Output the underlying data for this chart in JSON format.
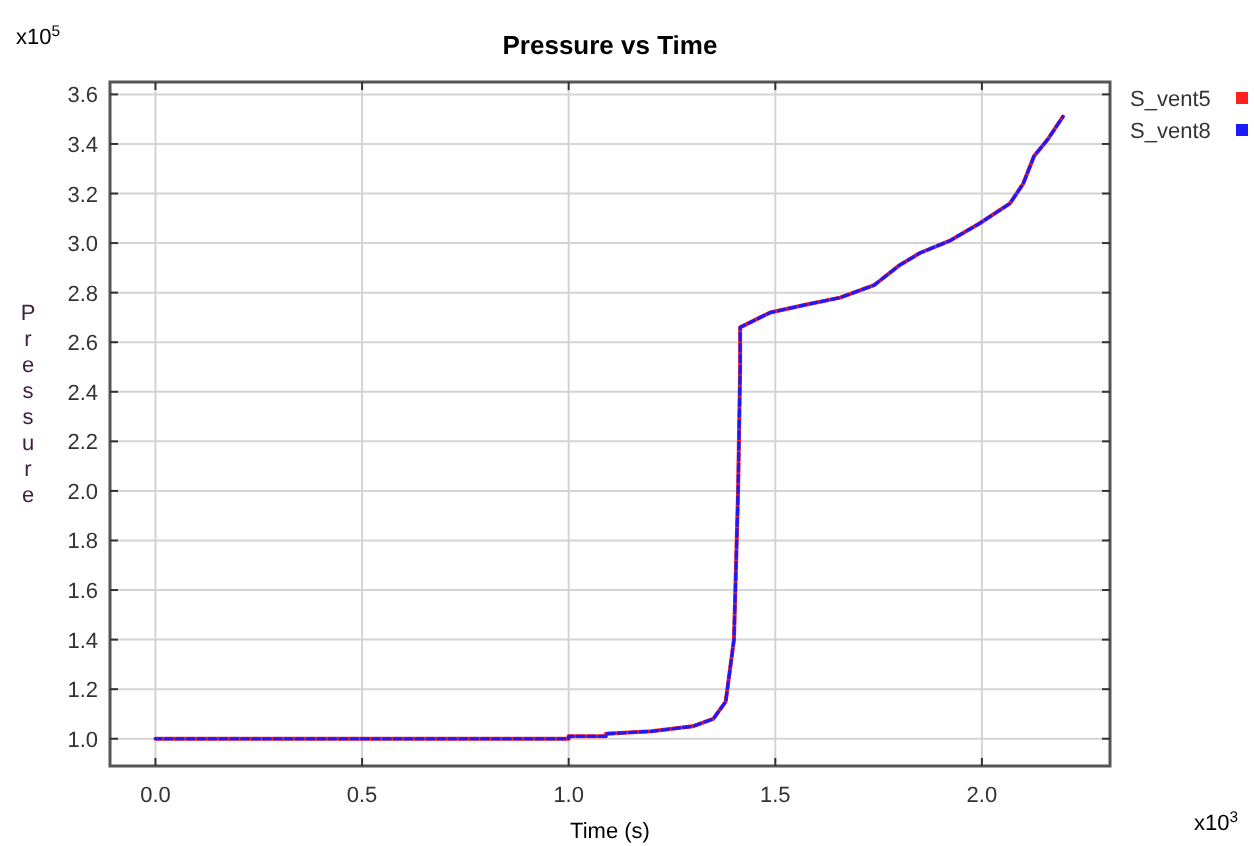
{
  "chart_data": {
    "type": "line",
    "title": "Pressure vs Time",
    "xlabel": "Time (s)",
    "ylabel": "Pressure",
    "annotations": [
      "x10$^{5}$",
      "x10$^{3}$"
    ],
    "xlim": [
      -0.11,
      2.31
    ],
    "xticks": [
      {
        "value": 0,
        "label": "0.0"
      },
      0.5,
      {
        "value": 1,
        "label": "1.0"
      },
      1.5,
      {
        "value": 2,
        "label": "2.0"
      }
    ],
    "ylim": [
      0.89,
      3.65
    ],
    "yticks": [
      {
        "value": 1,
        "label": "1.0"
      },
      1.2,
      1.4,
      1.6,
      1.8,
      {
        "value": 2,
        "label": "2.0"
      },
      2.2,
      2.4,
      2.6,
      2.8,
      {
        "value": 3,
        "label": "3.0"
      },
      3.2,
      3.4,
      3.6
    ],
    "grid": true,
    "legend": "right",
    "marker": "none",
    "x": [
      0,
      1.0,
      1.0,
      1.09,
      1.09,
      1.2,
      1.3,
      1.35,
      1.38,
      1.4,
      1.41,
      1.415,
      1.415,
      1.488,
      1.57,
      1.657,
      1.739,
      1.8,
      1.85,
      1.923,
      1.995,
      2.068,
      2.1,
      2.126,
      2.16,
      2.196
    ],
    "series": [
      {
        "name": "S_vent5",
        "color": "#ff2020",
        "line_style": "solid",
        "values": [
          1.0,
          1.0,
          1.01,
          1.01,
          1.02,
          1.03,
          1.05,
          1.08,
          1.15,
          1.4,
          2.0,
          2.5,
          2.66,
          2.72,
          2.75,
          2.78,
          2.83,
          2.91,
          2.96,
          3.01,
          3.08,
          3.16,
          3.24,
          3.35,
          3.42,
          3.51
        ]
      },
      {
        "name": "S_vent8",
        "color": "#1a1aff",
        "line_style": "dashed",
        "values": [
          1.0,
          1.0,
          1.01,
          1.01,
          1.02,
          1.03,
          1.05,
          1.08,
          1.15,
          1.4,
          2.0,
          2.5,
          2.66,
          2.72,
          2.75,
          2.78,
          2.83,
          2.91,
          2.96,
          3.01,
          3.08,
          3.16,
          3.24,
          3.35,
          3.42,
          3.51
        ]
      }
    ]
  }
}
